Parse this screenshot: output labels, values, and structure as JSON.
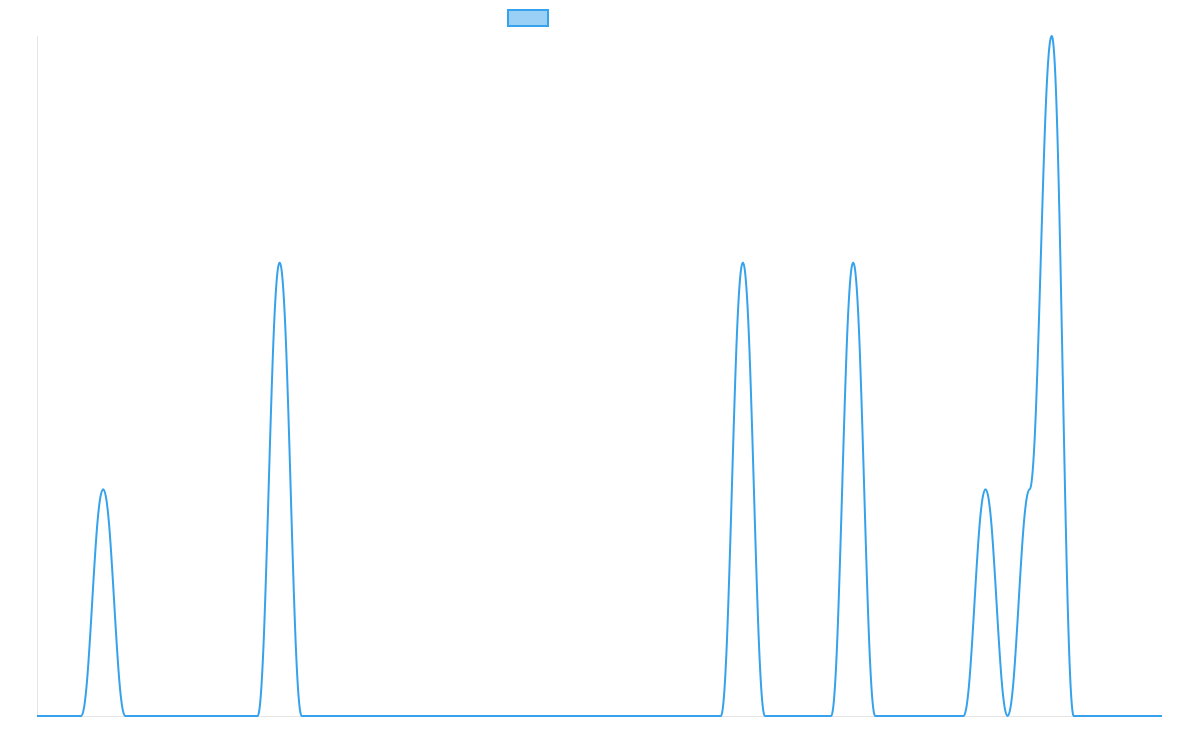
{
  "chart_data": {
    "type": "line",
    "title": "",
    "xlabel": "",
    "ylabel": "",
    "x": [
      0,
      1,
      2,
      3,
      4,
      5,
      6,
      7,
      8,
      9,
      10,
      11,
      12,
      13,
      14,
      15,
      16,
      17,
      18,
      19,
      20,
      21,
      22,
      23,
      24,
      25,
      26,
      27,
      28,
      29,
      30,
      31,
      32,
      33,
      34,
      35,
      36,
      37,
      38,
      39,
      40,
      41,
      42,
      43,
      44,
      45,
      46,
      47,
      48,
      49,
      50,
      51
    ],
    "series": [
      {
        "name": "",
        "values": [
          0,
          0,
          0,
          1,
          0,
          0,
          0,
          0,
          0,
          0,
          0,
          2,
          0,
          0,
          0,
          0,
          0,
          0,
          0,
          0,
          0,
          0,
          0,
          0,
          0,
          0,
          0,
          0,
          0,
          0,
          0,
          0,
          2,
          0,
          0,
          0,
          0,
          2,
          0,
          0,
          0,
          0,
          0,
          1,
          0,
          1,
          3,
          0,
          0,
          0,
          0,
          0
        ],
        "color": "#36a2eb",
        "fill_color": "#9ad0f5"
      }
    ],
    "ylim": [
      0,
      3
    ],
    "grid": false,
    "axes_labels_shown": false,
    "legend": "top"
  }
}
